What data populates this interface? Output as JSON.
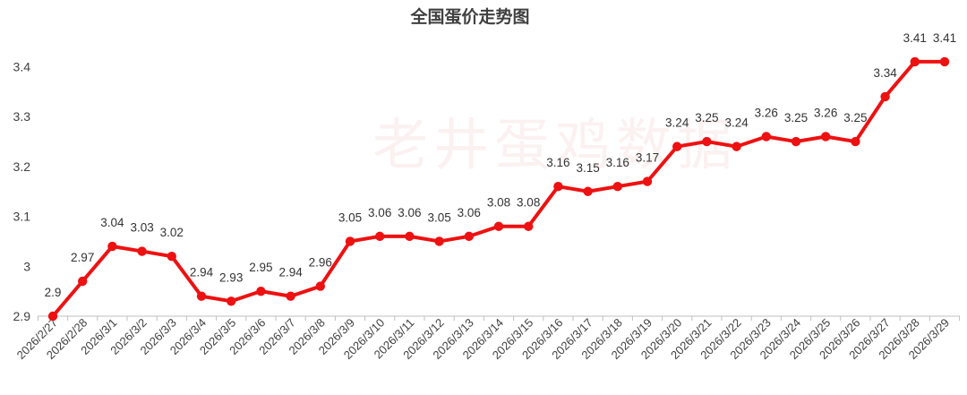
{
  "chart_data": {
    "type": "line",
    "title": "全国蛋价走势图",
    "watermark": "老井蛋鸡数据",
    "xlabel": "",
    "ylabel": "",
    "ylim": [
      2.9,
      3.45
    ],
    "yticks": [
      "2.9",
      "3",
      "3.1",
      "3.2",
      "3.3",
      "3.4"
    ],
    "grid": false,
    "legend": "none",
    "line_color": "#ee1111",
    "categories": [
      "2026/2/27",
      "2026/2/28",
      "2026/3/1",
      "2026/3/2",
      "2026/3/3",
      "2026/3/4",
      "2026/3/5",
      "2026/3/6",
      "2026/3/7",
      "2026/3/8",
      "2026/3/9",
      "2026/3/10",
      "2026/3/11",
      "2026/3/12",
      "2026/3/13",
      "2026/3/14",
      "2026/3/15",
      "2026/3/16",
      "2026/3/17",
      "2026/3/18",
      "2026/3/19",
      "2026/3/20",
      "2026/3/21",
      "2026/3/22",
      "2026/3/23",
      "2026/3/24",
      "2026/3/25",
      "2026/3/26",
      "2026/3/27",
      "2026/3/28",
      "2026/3/29"
    ],
    "values": [
      2.9,
      2.97,
      3.04,
      3.03,
      3.02,
      2.94,
      2.93,
      2.95,
      2.94,
      2.96,
      3.05,
      3.06,
      3.06,
      3.05,
      3.06,
      3.08,
      3.08,
      3.16,
      3.15,
      3.16,
      3.17,
      3.24,
      3.25,
      3.24,
      3.26,
      3.25,
      3.26,
      3.25,
      3.34,
      3.41,
      3.41
    ],
    "labels": [
      "2.9",
      "2.97",
      "3.04",
      "3.03",
      "3.02",
      "2.94",
      "2.93",
      "2.95",
      "2.94",
      "2.96",
      "3.05",
      "3.06",
      "3.06",
      "3.05",
      "3.06",
      "3.08",
      "3.08",
      "3.16",
      "3.15",
      "3.16",
      "3.17",
      "3.24",
      "3.25",
      "3.24",
      "3.26",
      "3.25",
      "3.26",
      "3.25",
      "3.34",
      "3.41",
      "3.41"
    ]
  }
}
